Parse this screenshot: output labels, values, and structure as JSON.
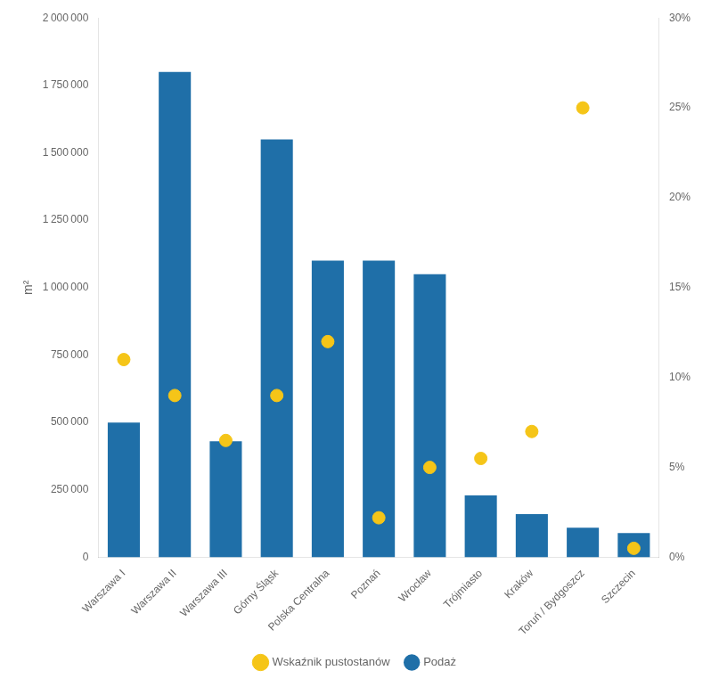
{
  "chart_data": {
    "type": "bar",
    "ylabel": "m²",
    "categories": [
      "Warszawa I",
      "Warszawa II",
      "Warszawa III",
      "Górny Śląsk",
      "Polska Centralna",
      "Poznań",
      "Wrocław",
      "Trójmiasto",
      "Kraków",
      "Toruń / Bydgoszcz",
      "Szczecin"
    ],
    "series": [
      {
        "name": "Podaż",
        "type": "bar",
        "color": "#1F6FA8",
        "values": [
          500000,
          1800000,
          430000,
          1550000,
          1100000,
          1100000,
          1050000,
          230000,
          160000,
          110000,
          90000
        ]
      },
      {
        "name": "Wskaźnik pustostanów",
        "type": "scatter",
        "marker": "circle",
        "color": "#F5C518",
        "axis": "y2",
        "values": [
          0.11,
          0.09,
          0.065,
          0.09,
          0.12,
          0.022,
          0.05,
          0.055,
          0.07,
          0.25,
          0.005
        ]
      }
    ],
    "ylim": [
      0,
      2000000
    ],
    "yticks": [
      0,
      {
        "value": 250000,
        "label": "250 000"
      },
      {
        "value": 500000,
        "label": "500 000"
      },
      {
        "value": 750000,
        "label": "750 000"
      },
      {
        "value": 1000000,
        "label": "1 000 000"
      },
      {
        "value": 1250000,
        "label": "1 250 000"
      },
      {
        "value": 1500000,
        "label": "1 500 000"
      },
      {
        "value": 1750000,
        "label": "1 750 000"
      },
      {
        "value": 2000000,
        "label": "2 000 000"
      }
    ],
    "y2lim": [
      0,
      0.3
    ],
    "y2ticks": [
      {
        "value": 0,
        "label": "0%"
      },
      {
        "value": 0.05,
        "label": "5%"
      },
      {
        "value": 0.1,
        "label": "10%"
      },
      {
        "value": 0.15,
        "label": "15%"
      },
      {
        "value": 0.2,
        "label": "20%"
      },
      {
        "value": 0.25,
        "label": "25%"
      },
      {
        "value": 0.3,
        "label": "30%"
      }
    ],
    "grid": false,
    "legend": "bottom"
  }
}
